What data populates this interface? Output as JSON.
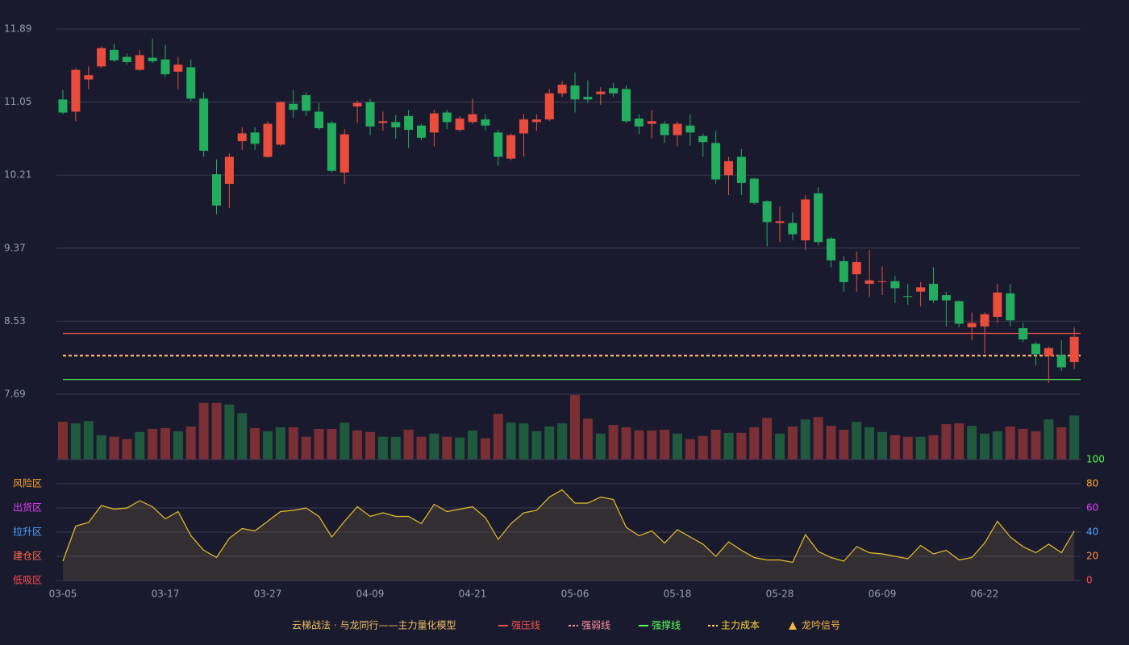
{
  "chart_data": [
    {
      "type": "candlestick",
      "title": "云梯战法 · 与龙同行——主力量化模型",
      "categories": [
        "03-05",
        null,
        null,
        null,
        null,
        null,
        null,
        null,
        "03-17",
        null,
        null,
        null,
        null,
        null,
        null,
        null,
        "03-27",
        null,
        null,
        null,
        null,
        null,
        null,
        null,
        "04-09",
        null,
        null,
        null,
        null,
        null,
        null,
        null,
        "04-21",
        null,
        null,
        null,
        null,
        null,
        null,
        null,
        "05-06",
        null,
        null,
        null,
        null,
        null,
        null,
        null,
        "05-18",
        null,
        null,
        null,
        null,
        null,
        null,
        null,
        "05-28",
        null,
        null,
        null,
        null,
        null,
        null,
        null,
        "06-09",
        null,
        null,
        null,
        null,
        null,
        null,
        null,
        "06-22",
        null,
        null,
        null,
        null,
        null,
        null,
        null
      ],
      "open": [
        11.08,
        10.94,
        11.31,
        11.46,
        11.65,
        11.57,
        11.42,
        11.56,
        11.54,
        11.4,
        11.45,
        11.09,
        10.22,
        10.11,
        10.6,
        10.7,
        10.42,
        10.56,
        11.03,
        11.13,
        10.94,
        10.81,
        10.24,
        11.0,
        11.05,
        10.81,
        10.82,
        10.89,
        10.78,
        10.7,
        10.93,
        10.73,
        10.82,
        10.85,
        10.7,
        10.4,
        10.69,
        10.82,
        10.85,
        11.15,
        11.24,
        11.11,
        11.14,
        11.21,
        11.2,
        10.86,
        10.8,
        10.8,
        10.67,
        10.78,
        10.66,
        10.58,
        10.21,
        10.42,
        10.17,
        9.91,
        9.66,
        9.66,
        9.46,
        10.0,
        9.48,
        9.22,
        9.07,
        8.96,
        8.98,
        8.99,
        8.82,
        8.87,
        8.96,
        8.83,
        8.76,
        8.46,
        8.47,
        8.58,
        8.85,
        8.45,
        8.27,
        8.13,
        8.14,
        8.06
      ],
      "close": [
        10.93,
        11.42,
        11.36,
        11.67,
        11.53,
        11.51,
        11.59,
        11.52,
        11.37,
        11.48,
        11.09,
        10.49,
        9.86,
        10.42,
        10.69,
        10.57,
        10.8,
        11.05,
        10.96,
        10.95,
        10.75,
        10.26,
        10.68,
        11.04,
        10.77,
        10.83,
        10.76,
        10.73,
        10.64,
        10.92,
        10.82,
        10.86,
        10.91,
        10.78,
        10.42,
        10.67,
        10.85,
        10.85,
        11.15,
        11.25,
        11.08,
        11.08,
        11.17,
        11.15,
        10.83,
        10.77,
        10.83,
        10.67,
        10.8,
        10.7,
        10.59,
        10.16,
        10.37,
        10.12,
        9.89,
        9.67,
        9.68,
        9.53,
        9.93,
        9.44,
        9.23,
        8.98,
        9.21,
        9.0,
        8.99,
        8.91,
        8.81,
        8.92,
        8.77,
        8.77,
        8.5,
        8.51,
        8.61,
        8.86,
        8.54,
        8.32,
        8.15,
        8.22,
        8.0,
        8.35
      ],
      "high": [
        11.19,
        11.44,
        11.46,
        11.69,
        11.72,
        11.61,
        11.65,
        11.78,
        11.71,
        11.57,
        11.54,
        11.16,
        10.39,
        10.46,
        10.76,
        10.76,
        10.83,
        11.06,
        11.19,
        11.16,
        11.04,
        10.83,
        10.74,
        11.07,
        11.09,
        10.94,
        10.9,
        10.96,
        10.8,
        10.96,
        10.96,
        10.89,
        11.09,
        10.91,
        10.73,
        10.69,
        10.91,
        10.91,
        11.2,
        11.29,
        11.39,
        11.3,
        11.22,
        11.27,
        11.24,
        10.91,
        10.96,
        10.83,
        10.83,
        10.91,
        10.69,
        10.72,
        10.42,
        10.51,
        10.18,
        9.92,
        9.85,
        9.78,
        9.98,
        10.07,
        9.5,
        9.28,
        9.33,
        9.35,
        9.16,
        9.05,
        8.96,
        8.98,
        9.15,
        8.87,
        8.77,
        8.63,
        8.63,
        8.96,
        8.96,
        8.51,
        8.29,
        8.24,
        8.31,
        8.46
      ],
      "low": [
        10.91,
        10.83,
        11.2,
        11.44,
        11.51,
        11.48,
        11.41,
        11.5,
        11.34,
        11.2,
        11.06,
        10.42,
        9.76,
        9.83,
        10.5,
        10.5,
        10.41,
        10.54,
        10.87,
        10.89,
        10.73,
        10.24,
        10.11,
        10.81,
        10.67,
        10.72,
        10.63,
        10.52,
        10.61,
        10.54,
        10.74,
        10.71,
        10.8,
        10.72,
        10.32,
        10.38,
        10.42,
        10.72,
        10.83,
        11.11,
        10.93,
        11.04,
        11.02,
        11.11,
        10.81,
        10.68,
        10.63,
        10.58,
        10.54,
        10.55,
        10.42,
        10.11,
        9.98,
        9.98,
        9.87,
        9.39,
        9.44,
        9.46,
        9.35,
        9.4,
        9.15,
        8.87,
        8.87,
        8.81,
        8.83,
        8.74,
        8.72,
        8.7,
        8.74,
        8.47,
        8.46,
        8.31,
        8.16,
        8.51,
        8.47,
        8.29,
        8.02,
        7.82,
        7.96,
        7.98
      ],
      "up_color": "#eb4d3d",
      "down_color": "#23ad5e",
      "ylim": [
        7.69,
        11.89
      ],
      "yticks": [
        11.89,
        11.05,
        10.21,
        9.37,
        8.53,
        7.69
      ],
      "grid": true,
      "lines": [
        {
          "name": "强压线",
          "value": 8.39,
          "color": "#ef5350",
          "dash": false
        },
        {
          "name": "强弱线",
          "value": 8.14,
          "color": "#ff8fa3",
          "dash": true
        },
        {
          "name": "强撑线",
          "value": 7.86,
          "color": "#5dff5d",
          "dash": false
        },
        {
          "name": "主力成本",
          "value": 8.13,
          "color": "#ffd93b",
          "dash": true
        }
      ],
      "signal": {
        "name": "龙吟信号",
        "color": "#f5b942"
      }
    },
    {
      "type": "bar",
      "values": [
        48,
        46,
        49,
        31,
        29,
        26,
        35,
        39,
        40,
        36,
        42,
        72,
        72,
        70,
        59,
        40,
        36,
        41,
        41,
        29,
        39,
        39,
        47,
        37,
        35,
        29,
        29,
        38,
        29,
        33,
        29,
        28,
        37,
        27,
        58,
        47,
        46,
        36,
        42,
        46,
        82,
        52,
        33,
        44,
        41,
        37,
        37,
        38,
        33,
        26,
        30,
        38,
        34,
        34,
        41,
        53,
        33,
        42,
        51,
        54,
        43,
        38,
        48,
        41,
        35,
        31,
        29,
        29,
        31,
        45,
        46,
        43,
        33,
        36,
        42,
        39,
        36,
        51,
        41,
        56
      ],
      "colors": [
        "#7a2f35",
        "#1f5a3f",
        "#1f5a3f",
        "#1f5a3f",
        "#7a2f35",
        "#7a2f35",
        "#1f5a3f",
        "#7a2f35",
        "#7a2f35",
        "#1f5a3f",
        "#7a2f35",
        "#7a2f35",
        "#7a2f35",
        "#1f5a3f",
        "#1f5a3f",
        "#7a2f35",
        "#1f5a3f",
        "#1f5a3f",
        "#7a2f35",
        "#7a2f35",
        "#7a2f35",
        "#7a2f35",
        "#1f5a3f",
        "#7a2f35",
        "#7a2f35",
        "#1f5a3f",
        "#1f5a3f",
        "#7a2f35",
        "#7a2f35",
        "#1f5a3f",
        "#7a2f35",
        "#1f5a3f",
        "#1f5a3f",
        "#7a2f35",
        "#7a2f35",
        "#1f5a3f",
        "#1f5a3f",
        "#1f5a3f",
        "#1f5a3f",
        "#1f5a3f",
        "#7a2f35",
        "#7a2f35",
        "#1f5a3f",
        "#7a2f35",
        "#7a2f35",
        "#7a2f35",
        "#7a2f35",
        "#7a2f35",
        "#1f5a3f",
        "#7a2f35",
        "#7a2f35",
        "#7a2f35",
        "#1f5a3f",
        "#7a2f35",
        "#7a2f35",
        "#7a2f35",
        "#1f5a3f",
        "#7a2f35",
        "#1f5a3f",
        "#7a2f35",
        "#7a2f35",
        "#7a2f35",
        "#1f5a3f",
        "#1f5a3f",
        "#1f5a3f",
        "#7a2f35",
        "#7a2f35",
        "#1f5a3f",
        "#7a2f35",
        "#7a2f35",
        "#7a2f35",
        "#1f5a3f",
        "#1f5a3f",
        "#1f5a3f",
        "#7a2f35",
        "#7a2f35",
        "#7a2f35",
        "#1f5a3f",
        "#7a2f35",
        "#1f5a3f"
      ]
    },
    {
      "type": "line",
      "values": [
        16,
        45,
        48,
        62,
        59,
        60,
        66,
        61,
        51,
        57,
        37,
        25,
        19,
        35,
        43,
        41,
        49,
        57,
        58,
        60,
        53,
        36,
        49,
        61,
        53,
        56,
        53,
        53,
        47,
        63,
        57,
        59,
        61,
        52,
        34,
        47,
        56,
        58,
        69,
        75,
        64,
        64,
        69,
        67,
        44,
        37,
        41,
        31,
        42,
        36,
        30,
        20,
        32,
        25,
        19,
        17,
        17,
        15,
        38,
        24,
        19,
        16,
        28,
        23,
        22,
        20,
        18,
        29,
        22,
        25,
        17,
        19,
        31,
        49,
        36,
        28,
        23,
        30,
        23,
        41
      ],
      "color": "#e6c229",
      "ylim": [
        0,
        100
      ],
      "yticks": [
        0,
        20,
        40,
        60,
        80,
        100
      ],
      "ytick_colors": [
        "#ff4d4d",
        "#ff8c42",
        "#4da3ff",
        "#e040fb",
        "#ffa726",
        "#4cff4c"
      ],
      "zones": [
        {
          "label": "风险区",
          "value": 80,
          "color": "#ffa726"
        },
        {
          "label": "出货区",
          "value": 60,
          "color": "#e040fb"
        },
        {
          "label": "拉升区",
          "value": 40,
          "color": "#4da3ff"
        },
        {
          "label": "建仓区",
          "value": 20,
          "color": "#ff6b4a"
        },
        {
          "label": "低吸区",
          "value": 0,
          "color": "#ff4d4d"
        }
      ]
    }
  ]
}
